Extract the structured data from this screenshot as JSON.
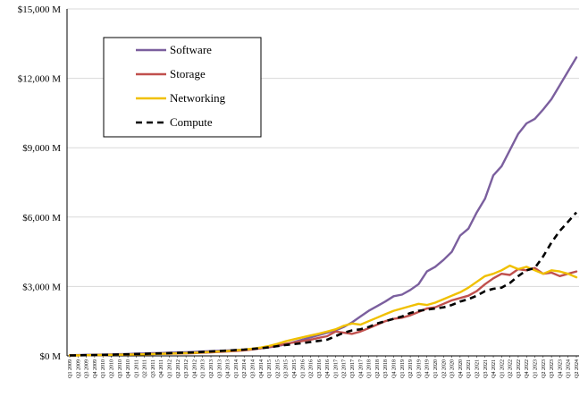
{
  "chart_data": {
    "type": "line",
    "title": "",
    "xlabel": "",
    "ylabel": "",
    "ylim": [
      0,
      15000
    ],
    "yticks": [
      "$0 M",
      "$3,000 M",
      "$6,000 M",
      "$9,000 M",
      "$12,000 M",
      "$15,000 M"
    ],
    "ytick_values": [
      0,
      3000,
      6000,
      9000,
      12000,
      15000
    ],
    "grid": "horizontal",
    "legend_position": "top-left",
    "categories": [
      "Q1 2009",
      "Q2 2009",
      "Q3 2009",
      "Q4 2009",
      "Q1 2010",
      "Q2 2010",
      "Q3 2010",
      "Q4 2010",
      "Q1 2011",
      "Q2 2011",
      "Q3 2011",
      "Q4 2011",
      "Q1 2012",
      "Q2 2012",
      "Q3 2012",
      "Q4 2012",
      "Q1 2013",
      "Q2 2013",
      "Q3 2013",
      "Q4 2013",
      "Q1 2014",
      "Q2 2014",
      "Q3 2014",
      "Q4 2014",
      "Q1 2015",
      "Q2 2015",
      "Q3 2015",
      "Q4 2015",
      "Q1 2016",
      "Q2 2016",
      "Q3 2016",
      "Q4 2016",
      "Q1 2017",
      "Q2 2017",
      "Q3 2017",
      "Q4 2017",
      "Q1 2018",
      "Q2 2018",
      "Q3 2018",
      "Q4 2018",
      "Q1 2019",
      "Q2 2019",
      "Q3 2019",
      "Q4 2019",
      "Q1 2020",
      "Q2 2020",
      "Q3 2020",
      "Q4 2020",
      "Q1 2021",
      "Q2 2021",
      "Q3 2021",
      "Q4 2021",
      "Q1 2022",
      "Q2 2022",
      "Q3 2022",
      "Q4 2022",
      "Q1 2023",
      "Q2 2023",
      "Q3 2023",
      "Q4 2023",
      "Q1 2024",
      "Q2 2024"
    ],
    "series": [
      {
        "name": "Software",
        "color": "#7b5f9e",
        "dash": "solid",
        "values": [
          30,
          35,
          45,
          50,
          55,
          65,
          75,
          80,
          95,
          105,
          115,
          125,
          135,
          145,
          160,
          170,
          190,
          205,
          220,
          235,
          255,
          275,
          300,
          330,
          370,
          420,
          500,
          600,
          700,
          800,
          900,
          1000,
          1100,
          1250,
          1450,
          1700,
          1950,
          2150,
          2350,
          2580,
          2650,
          2850,
          3100,
          3650,
          3850,
          4150,
          4500,
          5200,
          5500,
          6200,
          6800,
          7800,
          8200,
          8900,
          9600,
          10050,
          10250,
          10650,
          11100,
          11700,
          12300,
          12900
        ]
      },
      {
        "name": "Storage",
        "color": "#c0504d",
        "dash": "solid",
        "values": [
          20,
          25,
          30,
          35,
          40,
          45,
          50,
          55,
          60,
          70,
          80,
          90,
          95,
          100,
          110,
          120,
          140,
          155,
          170,
          190,
          210,
          240,
          280,
          330,
          390,
          450,
          520,
          580,
          640,
          700,
          780,
          850,
          1050,
          1000,
          950,
          1050,
          1200,
          1350,
          1500,
          1600,
          1650,
          1750,
          1900,
          2050,
          2100,
          2250,
          2400,
          2500,
          2600,
          2800,
          3100,
          3350,
          3550,
          3500,
          3750,
          3700,
          3800,
          3550,
          3600,
          3450,
          3550,
          3650
        ]
      },
      {
        "name": "Networking",
        "color": "#f0c000",
        "dash": "solid",
        "values": [
          20,
          25,
          30,
          35,
          40,
          45,
          50,
          55,
          60,
          70,
          80,
          90,
          100,
          110,
          120,
          130,
          150,
          170,
          190,
          210,
          240,
          270,
          310,
          360,
          430,
          520,
          630,
          720,
          800,
          880,
          960,
          1050,
          1150,
          1300,
          1400,
          1350,
          1500,
          1650,
          1800,
          1950,
          2050,
          2150,
          2250,
          2200,
          2300,
          2450,
          2600,
          2750,
          2950,
          3200,
          3450,
          3550,
          3700,
          3900,
          3750,
          3850,
          3700,
          3550,
          3700,
          3650,
          3550,
          3400
        ]
      },
      {
        "name": "Compute",
        "color": "#000000",
        "dash": "dashed",
        "values": [
          20,
          25,
          30,
          35,
          45,
          50,
          60,
          70,
          80,
          90,
          100,
          110,
          120,
          130,
          140,
          150,
          170,
          190,
          210,
          230,
          250,
          270,
          300,
          330,
          370,
          420,
          470,
          510,
          550,
          600,
          650,
          700,
          850,
          1000,
          1100,
          1150,
          1250,
          1400,
          1500,
          1600,
          1700,
          1850,
          1950,
          2000,
          2050,
          2100,
          2200,
          2350,
          2450,
          2600,
          2800,
          2900,
          2950,
          3150,
          3450,
          3700,
          3800,
          4300,
          4900,
          5400,
          5800,
          6200
        ]
      }
    ]
  }
}
